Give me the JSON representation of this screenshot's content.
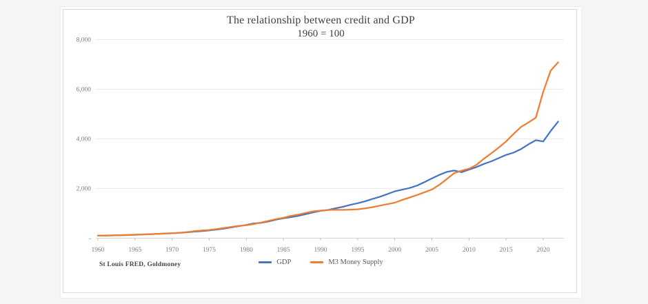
{
  "page": {
    "background_color": "#f5f5f6",
    "card_background": "#ffffff"
  },
  "chart_data": {
    "type": "line",
    "title": "The relationship between credit and GDP",
    "subtitle": "1960 = 100",
    "source_note": "St Louis FRED, Goldmoney",
    "xlabel": "",
    "ylabel": "",
    "xlim": [
      1960,
      2023
    ],
    "ylim": [
      0,
      8000
    ],
    "grid": "horizontal-only",
    "legend_position": "bottom-center",
    "x": [
      1960,
      1961,
      1962,
      1963,
      1964,
      1965,
      1966,
      1967,
      1968,
      1969,
      1970,
      1971,
      1972,
      1973,
      1974,
      1975,
      1976,
      1977,
      1978,
      1979,
      1980,
      1981,
      1982,
      1983,
      1984,
      1985,
      1986,
      1987,
      1988,
      1989,
      1990,
      1991,
      1992,
      1993,
      1994,
      1995,
      1996,
      1997,
      1998,
      1999,
      2000,
      2001,
      2002,
      2003,
      2004,
      2005,
      2006,
      2007,
      2008,
      2009,
      2010,
      2011,
      2012,
      2013,
      2014,
      2015,
      2016,
      2017,
      2018,
      2019,
      2020,
      2021,
      2022
    ],
    "series": [
      {
        "name": "GDP",
        "color": "#4472C4",
        "values": [
          100,
          104,
          111,
          117,
          126,
          137,
          150,
          158,
          173,
          187,
          197,
          214,
          235,
          263,
          285,
          311,
          346,
          385,
          436,
          487,
          530,
          595,
          619,
          672,
          746,
          800,
          846,
          898,
          967,
          1040,
          1099,
          1135,
          1202,
          1263,
          1342,
          1407,
          1486,
          1580,
          1669,
          1774,
          1888,
          1952,
          2022,
          2120,
          2258,
          2408,
          2550,
          2670,
          2725,
          2659,
          2760,
          2864,
          2991,
          3098,
          3226,
          3355,
          3447,
          3590,
          3780,
          3946,
          3897,
          4316,
          4697
        ]
      },
      {
        "name": "M3 Money Supply",
        "color": "#ED7D31",
        "values": [
          100,
          107,
          114,
          122,
          131,
          140,
          149,
          160,
          172,
          182,
          196,
          218,
          248,
          280,
          308,
          330,
          368,
          410,
          455,
          498,
          520,
          570,
          630,
          700,
          770,
          820,
          900,
          950,
          1020,
          1080,
          1110,
          1135,
          1145,
          1140,
          1150,
          1165,
          1200,
          1250,
          1310,
          1370,
          1430,
          1540,
          1640,
          1740,
          1850,
          1960,
          2150,
          2380,
          2620,
          2720,
          2800,
          2950,
          3200,
          3420,
          3650,
          3900,
          4200,
          4480,
          4660,
          4855,
          5900,
          6750,
          7085
        ]
      }
    ],
    "y_ticks": [
      0,
      2000,
      4000,
      6000,
      8000
    ],
    "y_tick_labels": [
      "-",
      "2,000",
      "4,000",
      "6,000",
      "8,000"
    ],
    "x_ticks": [
      1960,
      1965,
      1970,
      1975,
      1980,
      1985,
      1990,
      1995,
      2000,
      2005,
      2010,
      2015,
      2020
    ],
    "x_tick_labels": [
      "1960",
      "1965",
      "1970",
      "1975",
      "1980",
      "1985",
      "1990",
      "1995",
      "2000",
      "2005",
      "2010",
      "2015",
      "2020"
    ],
    "colors": {
      "grid": "#e9e9e9",
      "axis": "#d4d4d4",
      "tick": "#bdbdbd",
      "axis_text": "#7d7d7d",
      "title_text": "#3f3f3f",
      "legend_text": "#595959",
      "source_text": "#474747"
    }
  }
}
